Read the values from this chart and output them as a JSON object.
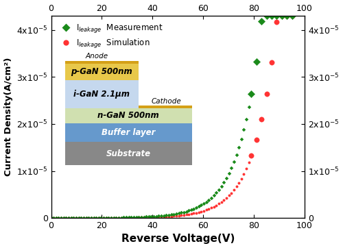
{
  "xlabel": "Reverse Voltage(V)",
  "ylabel": "Current Density(A/cm²)",
  "xlim": [
    0,
    100
  ],
  "ylim": [
    0,
    4.3e-05
  ],
  "xticks": [
    0,
    20,
    40,
    60,
    80,
    100
  ],
  "yticks": [
    0,
    1e-05,
    2e-05,
    3e-05,
    4e-05
  ],
  "ytick_labels": [
    "0",
    "1x10$^{-5}$",
    "2x10$^{-5}$",
    "3x10$^{-5}$",
    "4x10$^{-5}$"
  ],
  "measurement_color": "#1a8a1a",
  "simulation_color": "#ff3333",
  "background_color": "#ffffff",
  "legend_label_measurement": "I$_{leakage}$  Measurement",
  "legend_label_simulation": "I$_{leakage}$  Simulation",
  "layer_colors": {
    "p_gan_border": "#d4a017",
    "p_gan_fill": "#e8c84a",
    "i_gan": "#c5d8ee",
    "n_gan": "#d0e0b0",
    "buffer": "#6699cc",
    "substrate": "#888888"
  },
  "layer_labels": {
    "p_gan": "p-GaN 500nm",
    "i_gan": "i-GaN 2.1μm",
    "n_gan": "n-GaN 500nm",
    "buffer": "Buffer layer",
    "substrate": "Substrate"
  }
}
